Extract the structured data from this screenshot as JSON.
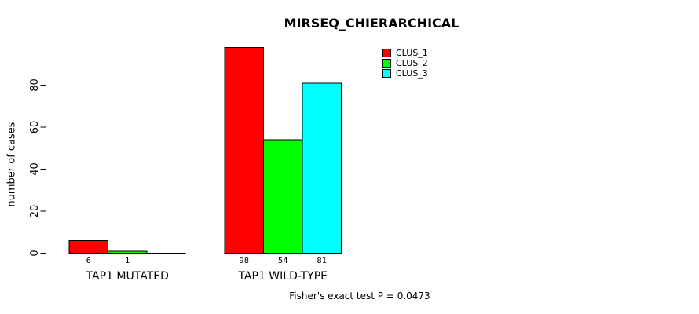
{
  "chart_data": {
    "type": "bar",
    "title": "MIRSEQ_CHIERARCHICAL",
    "xlabel": "",
    "ylabel": "number of cases",
    "ylim": [
      0,
      98
    ],
    "yticks": [
      0,
      20,
      40,
      60,
      80
    ],
    "grid": false,
    "legend_position": "top-right",
    "background_color": "#ffffff",
    "axis_color": "#000000",
    "categories": [
      "TAP1 MUTATED",
      "TAP1 WILD-TYPE"
    ],
    "series": [
      {
        "name": "CLUS_1",
        "color": "#ff0000",
        "values": [
          6,
          98
        ]
      },
      {
        "name": "CLUS_2",
        "color": "#00ff00",
        "values": [
          1,
          54
        ]
      },
      {
        "name": "CLUS_3",
        "color": "#00ffff",
        "values": [
          0,
          81
        ]
      }
    ],
    "bar_labels": [
      [
        "6",
        "1",
        ""
      ],
      [
        "98",
        "54",
        "81"
      ]
    ],
    "annotation": "Fisher's exact test P = 0.0473"
  }
}
